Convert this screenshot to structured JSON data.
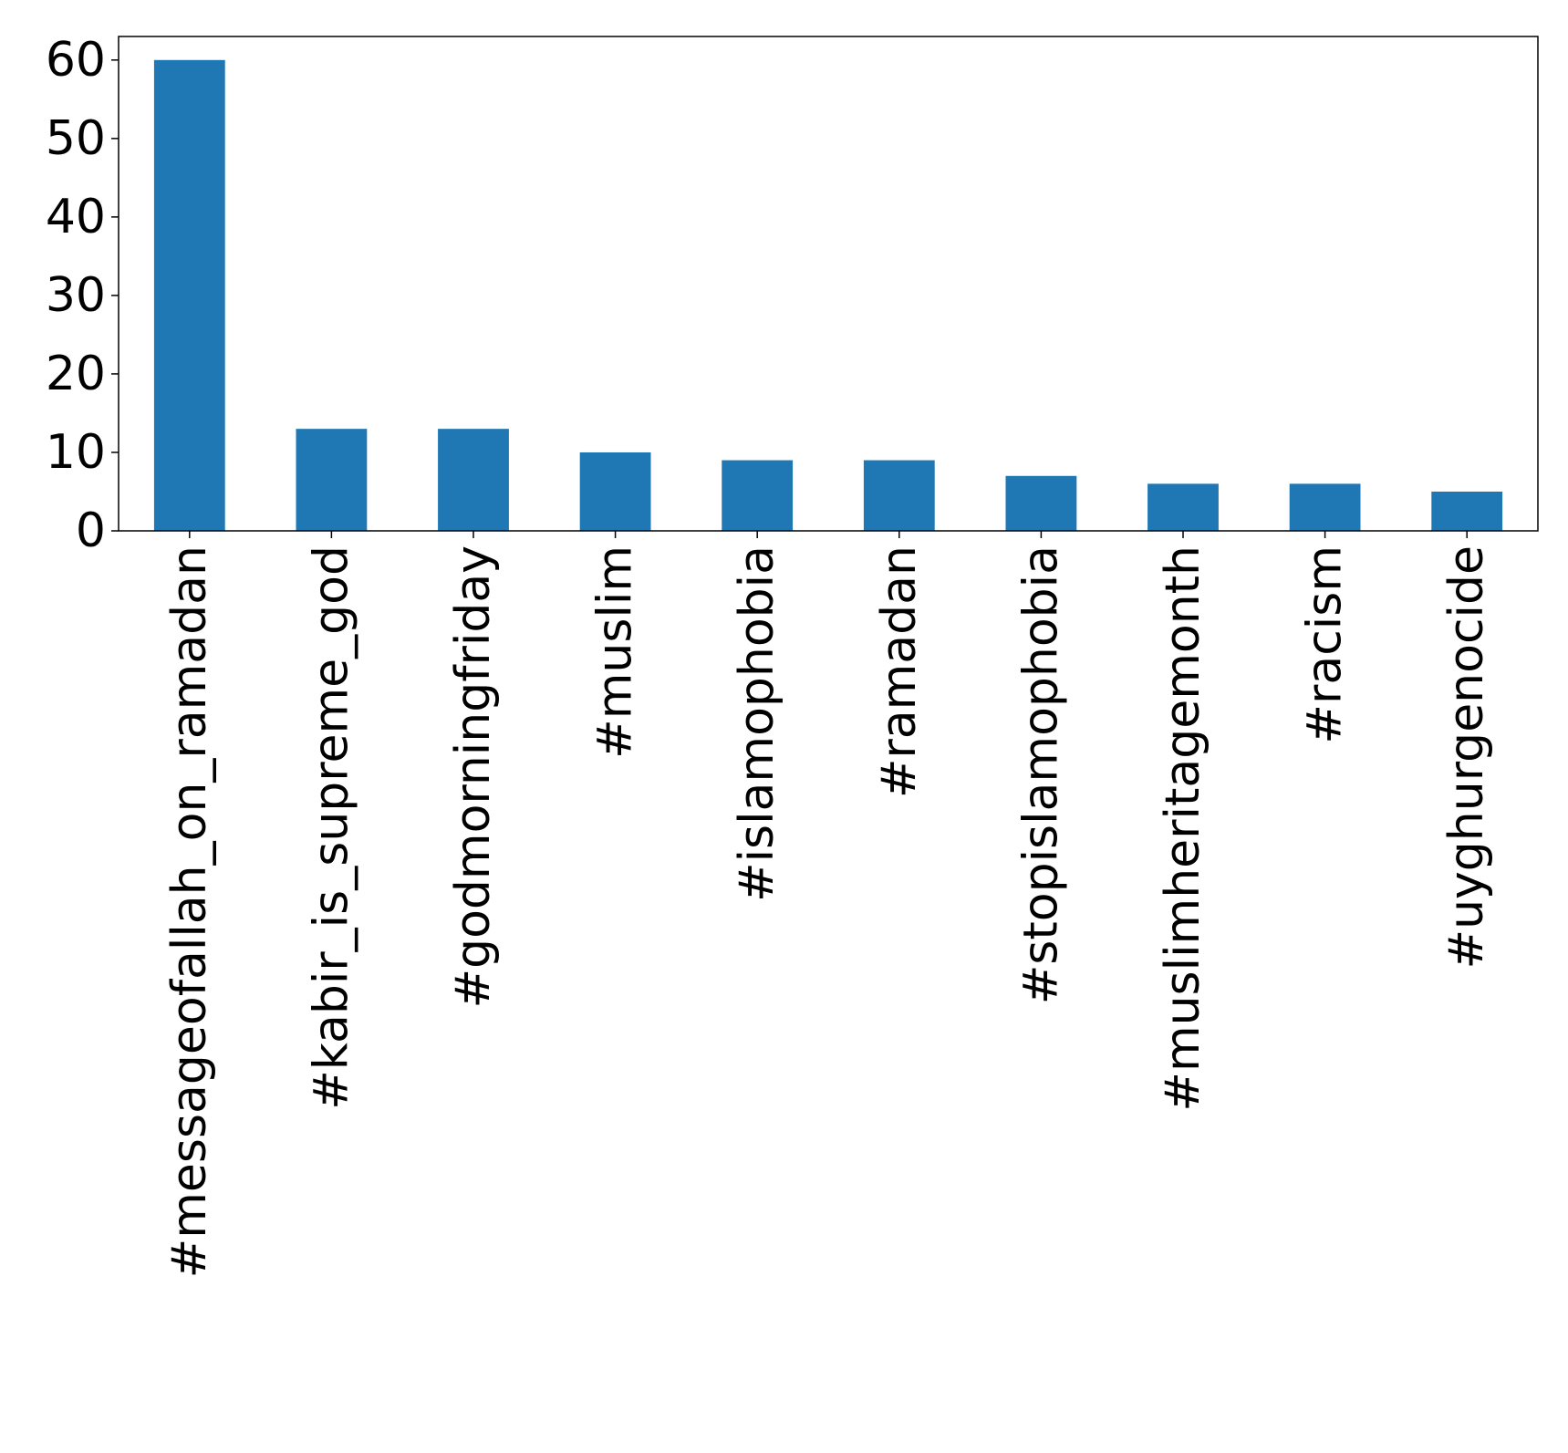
{
  "chart_data": {
    "type": "bar",
    "categories": [
      "#messageofallah_on_ramadan",
      "#kabir_is_supreme_god",
      "#godmorningfriday",
      "#muslim",
      "#islamophobia",
      "#ramadan",
      "#stopislamophobia",
      "#muslimheritagemonth",
      "#racism",
      "#uyghurgenocide"
    ],
    "values": [
      60,
      13,
      13,
      10,
      9,
      9,
      7,
      6,
      6,
      5
    ],
    "ylim": [
      0,
      63
    ],
    "yticks": [
      0,
      10,
      20,
      30,
      40,
      50,
      60
    ],
    "title": "",
    "xlabel": "",
    "ylabel": "",
    "grid": false,
    "bar_color": "#1f77b4"
  }
}
